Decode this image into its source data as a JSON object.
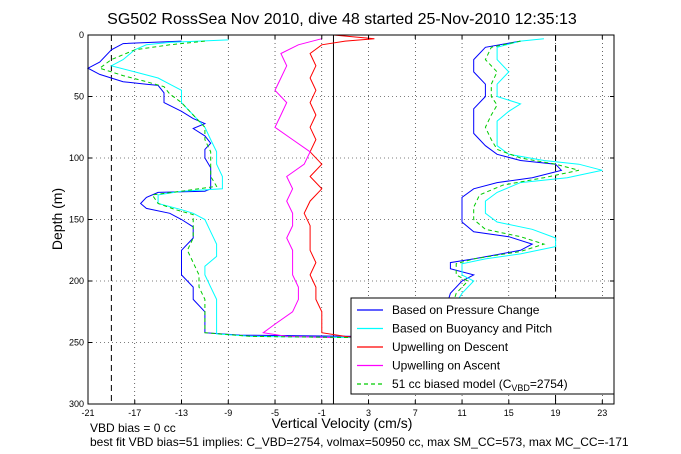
{
  "chart_data": {
    "type": "line",
    "title": "SG502 RossSea Nov 2010, dive 48 started 25-Nov-2010 12:35:13",
    "xlabel": "Vertical Velocity (cm/s)",
    "ylabel": "Depth (m)",
    "xlim": [
      -21,
      24
    ],
    "ylim": [
      0,
      300
    ],
    "y_reversed": true,
    "grid": true,
    "legend_position": "bottom-right",
    "xticks": [
      -21,
      -17,
      -13,
      -9,
      -5,
      -1,
      3,
      7,
      11,
      15,
      19,
      23
    ],
    "xtick_labels": [
      "-21",
      "-17",
      "-13",
      "-9",
      "-5",
      "-1",
      "3",
      "7",
      "11",
      "15",
      "19",
      "23"
    ],
    "yticks": [
      0,
      50,
      100,
      150,
      200,
      250,
      300
    ],
    "ytick_labels": [
      "0",
      "50",
      "100",
      "150",
      "200",
      "250",
      "300"
    ],
    "reference_lines": [
      {
        "x": -19,
        "style": "dashed"
      },
      {
        "x": 19,
        "style": "dashed"
      },
      {
        "x": 0,
        "style": "solid"
      }
    ],
    "legend": {
      "entries": [
        {
          "label": "Based on Pressure Change",
          "color": "#0000ff",
          "dash": "solid"
        },
        {
          "label": "Based on Buoyancy and Pitch",
          "color": "#00ffff",
          "dash": "solid"
        },
        {
          "label": "Upwelling on Descent",
          "color": "#ff0000",
          "dash": "solid"
        },
        {
          "label": "Upwelling on Ascent",
          "color": "#ff00ff",
          "dash": "solid"
        },
        {
          "label_main": "51 cc biased model (C",
          "label_sub": "VBD",
          "label_tail": "=2754)",
          "color": "#00cc00",
          "dash": "dashed"
        }
      ]
    },
    "series": [
      {
        "color": "#0000ff",
        "points": [
          [
            -13,
            5
          ],
          [
            -18,
            7
          ],
          [
            -19,
            12
          ],
          [
            -20,
            22
          ],
          [
            -21,
            27
          ],
          [
            -20,
            32
          ],
          [
            -18,
            38
          ],
          [
            -16,
            40
          ],
          [
            -15,
            41
          ],
          [
            -14.5,
            47
          ],
          [
            -14.5,
            55
          ],
          [
            -13,
            62
          ],
          [
            -12,
            68
          ],
          [
            -11,
            72
          ],
          [
            -12,
            76
          ],
          [
            -11,
            82
          ],
          [
            -10.5,
            88
          ],
          [
            -11,
            93
          ],
          [
            -11,
            100
          ],
          [
            -10.5,
            108
          ],
          [
            -10.5,
            118
          ],
          [
            -10.5,
            125
          ],
          [
            -11,
            127
          ],
          [
            -15,
            128
          ],
          [
            -16,
            132
          ],
          [
            -16.5,
            137
          ],
          [
            -16,
            141
          ],
          [
            -14,
            145
          ],
          [
            -13,
            150
          ],
          [
            -12,
            156
          ],
          [
            -12,
            165
          ],
          [
            -13,
            175
          ],
          [
            -13,
            185
          ],
          [
            -13,
            195
          ],
          [
            -12,
            205
          ],
          [
            -12,
            215
          ],
          [
            -11,
            225
          ],
          [
            -11,
            235
          ],
          [
            -11,
            242
          ],
          [
            -8,
            244
          ],
          [
            2,
            245
          ]
        ]
      },
      {
        "color": "#0000ff",
        "points": [
          [
            16,
            5
          ],
          [
            13,
            10
          ],
          [
            12,
            20
          ],
          [
            12,
            30
          ],
          [
            13,
            40
          ],
          [
            13,
            50
          ],
          [
            12,
            60
          ],
          [
            12,
            70
          ],
          [
            12,
            80
          ],
          [
            13,
            90
          ],
          [
            14,
            97
          ],
          [
            16,
            102
          ],
          [
            19,
            105
          ],
          [
            19.5,
            110
          ],
          [
            17,
            116
          ],
          [
            14,
            120
          ],
          [
            12,
            125
          ],
          [
            11,
            132
          ],
          [
            11,
            142
          ],
          [
            11,
            152
          ],
          [
            12,
            160
          ],
          [
            15,
            164
          ],
          [
            17,
            170
          ],
          [
            16,
            175
          ],
          [
            12,
            182
          ],
          [
            10,
            185
          ],
          [
            10,
            190
          ],
          [
            12,
            195
          ],
          [
            11,
            200
          ],
          [
            10,
            210
          ],
          [
            9.5,
            225
          ],
          [
            9.5,
            240
          ],
          [
            9,
            247
          ],
          [
            4,
            248
          ]
        ]
      },
      {
        "color": "#00ffff",
        "points": [
          [
            -9,
            4
          ],
          [
            -14,
            6
          ],
          [
            -16,
            8
          ],
          [
            -17,
            12
          ],
          [
            -18,
            20
          ],
          [
            -19,
            25
          ],
          [
            -17,
            30
          ],
          [
            -15,
            35
          ],
          [
            -14,
            40
          ],
          [
            -13,
            45
          ],
          [
            -13,
            55
          ],
          [
            -12,
            65
          ],
          [
            -11,
            75
          ],
          [
            -10.5,
            85
          ],
          [
            -10,
            95
          ],
          [
            -10,
            105
          ],
          [
            -9.5,
            115
          ],
          [
            -9.5,
            125
          ],
          [
            -13,
            127
          ],
          [
            -15,
            130
          ],
          [
            -15,
            137
          ],
          [
            -13,
            142
          ],
          [
            -12,
            145
          ],
          [
            -11,
            150
          ],
          [
            -10.5,
            160
          ],
          [
            -10,
            170
          ],
          [
            -10,
            180
          ],
          [
            -11,
            188
          ],
          [
            -11,
            195
          ],
          [
            -10.5,
            205
          ],
          [
            -10,
            215
          ],
          [
            -10,
            225
          ],
          [
            -10,
            235
          ],
          [
            -10,
            243
          ],
          [
            -7,
            245
          ],
          [
            2,
            246
          ]
        ]
      },
      {
        "color": "#00ffff",
        "points": [
          [
            18,
            3
          ],
          [
            16,
            5
          ],
          [
            14,
            10
          ],
          [
            14,
            20
          ],
          [
            15,
            30
          ],
          [
            14,
            40
          ],
          [
            14,
            50
          ],
          [
            16,
            56
          ],
          [
            15,
            62
          ],
          [
            14,
            70
          ],
          [
            14,
            80
          ],
          [
            14,
            90
          ],
          [
            15,
            97
          ],
          [
            18,
            102
          ],
          [
            21,
            105
          ],
          [
            23,
            110
          ],
          [
            20,
            116
          ],
          [
            16,
            120
          ],
          [
            14,
            128
          ],
          [
            13,
            135
          ],
          [
            13,
            145
          ],
          [
            14,
            152
          ],
          [
            17,
            158
          ],
          [
            19,
            165
          ],
          [
            19,
            172
          ],
          [
            16,
            178
          ],
          [
            13,
            182
          ],
          [
            11,
            186
          ],
          [
            11,
            195
          ],
          [
            12,
            200
          ],
          [
            11,
            210
          ],
          [
            10,
            225
          ],
          [
            10,
            240
          ],
          [
            9.5,
            247
          ],
          [
            4,
            248
          ]
        ]
      },
      {
        "color": "#ff0000",
        "points": [
          [
            0,
            0
          ],
          [
            3.5,
            3
          ],
          [
            1,
            5
          ],
          [
            -1,
            8
          ],
          [
            -2,
            15
          ],
          [
            -1.5,
            25
          ],
          [
            -2,
            35
          ],
          [
            -1.5,
            45
          ],
          [
            -2,
            55
          ],
          [
            -1.5,
            65
          ],
          [
            -2,
            75
          ],
          [
            -1.5,
            85
          ],
          [
            -2,
            95
          ],
          [
            -1,
            105
          ],
          [
            -2,
            115
          ],
          [
            -1,
            125
          ],
          [
            -2,
            135
          ],
          [
            -2.5,
            145
          ],
          [
            -2,
            155
          ],
          [
            -2,
            165
          ],
          [
            -2,
            175
          ],
          [
            -1.5,
            185
          ],
          [
            -2,
            195
          ],
          [
            -1.5,
            205
          ],
          [
            -1.5,
            215
          ],
          [
            -1,
            225
          ],
          [
            -1,
            235
          ],
          [
            -1,
            242
          ],
          [
            1,
            245
          ],
          [
            2,
            246
          ]
        ]
      },
      {
        "color": "#ff00ff",
        "points": [
          [
            -1,
            3
          ],
          [
            -3,
            8
          ],
          [
            -4.5,
            15
          ],
          [
            -4,
            25
          ],
          [
            -4.5,
            35
          ],
          [
            -5,
            45
          ],
          [
            -4,
            55
          ],
          [
            -4.5,
            65
          ],
          [
            -5,
            75
          ],
          [
            -3.5,
            85
          ],
          [
            -2,
            95
          ],
          [
            -2.5,
            105
          ],
          [
            -4,
            115
          ],
          [
            -3.5,
            125
          ],
          [
            -4,
            135
          ],
          [
            -3.5,
            145
          ],
          [
            -3.5,
            155
          ],
          [
            -4,
            165
          ],
          [
            -3.5,
            175
          ],
          [
            -3.5,
            185
          ],
          [
            -3.5,
            195
          ],
          [
            -3,
            205
          ],
          [
            -3,
            215
          ],
          [
            -3.5,
            225
          ],
          [
            -5,
            235
          ],
          [
            -6,
            242
          ],
          [
            -4,
            245
          ],
          [
            0,
            246
          ]
        ]
      },
      {
        "color": "#00cc00",
        "dash": "dashed",
        "points": [
          [
            -11,
            5
          ],
          [
            -14,
            8
          ],
          [
            -17,
            12
          ],
          [
            -19,
            20
          ],
          [
            -20,
            27
          ],
          [
            -18,
            33
          ],
          [
            -16,
            38
          ],
          [
            -14.5,
            42
          ],
          [
            -14,
            48
          ],
          [
            -13,
            55
          ],
          [
            -12,
            65
          ],
          [
            -11,
            75
          ],
          [
            -11,
            85
          ],
          [
            -10.5,
            95
          ],
          [
            -10.5,
            105
          ],
          [
            -10.5,
            115
          ],
          [
            -10,
            123
          ],
          [
            -13,
            127
          ],
          [
            -15.5,
            130
          ],
          [
            -15,
            137
          ],
          [
            -13.5,
            142
          ],
          [
            -12,
            146
          ],
          [
            -12,
            155
          ],
          [
            -12,
            165
          ],
          [
            -12.5,
            175
          ],
          [
            -12,
            185
          ],
          [
            -11.5,
            195
          ],
          [
            -11.5,
            205
          ],
          [
            -11,
            215
          ],
          [
            -11,
            225
          ],
          [
            -11,
            235
          ],
          [
            -11,
            242
          ],
          [
            -7,
            245
          ],
          [
            2,
            246
          ]
        ]
      },
      {
        "color": "#00cc00",
        "dash": "dashed",
        "points": [
          [
            16,
            5
          ],
          [
            13.5,
            10
          ],
          [
            13,
            20
          ],
          [
            14,
            30
          ],
          [
            13.5,
            40
          ],
          [
            13.5,
            50
          ],
          [
            14,
            57
          ],
          [
            13.5,
            65
          ],
          [
            13,
            75
          ],
          [
            13.5,
            85
          ],
          [
            14,
            93
          ],
          [
            16,
            100
          ],
          [
            19,
            105
          ],
          [
            21,
            110
          ],
          [
            18,
            116
          ],
          [
            14.5,
            122
          ],
          [
            12.5,
            130
          ],
          [
            12,
            140
          ],
          [
            12,
            150
          ],
          [
            13,
            158
          ],
          [
            16,
            164
          ],
          [
            18,
            170
          ],
          [
            16,
            176
          ],
          [
            12,
            182
          ],
          [
            10.5,
            186
          ],
          [
            10.5,
            195
          ],
          [
            11.5,
            200
          ],
          [
            10.5,
            210
          ],
          [
            10,
            225
          ],
          [
            10,
            240
          ],
          [
            9.5,
            247
          ],
          [
            4,
            248
          ]
        ]
      }
    ]
  },
  "footer": {
    "line1": "VBD bias = 0 cc",
    "line2": "best fit VBD bias=51 implies: C_VBD=2754, volmax=50950 cc, max SM_CC=573, max MC_CC=-171"
  }
}
